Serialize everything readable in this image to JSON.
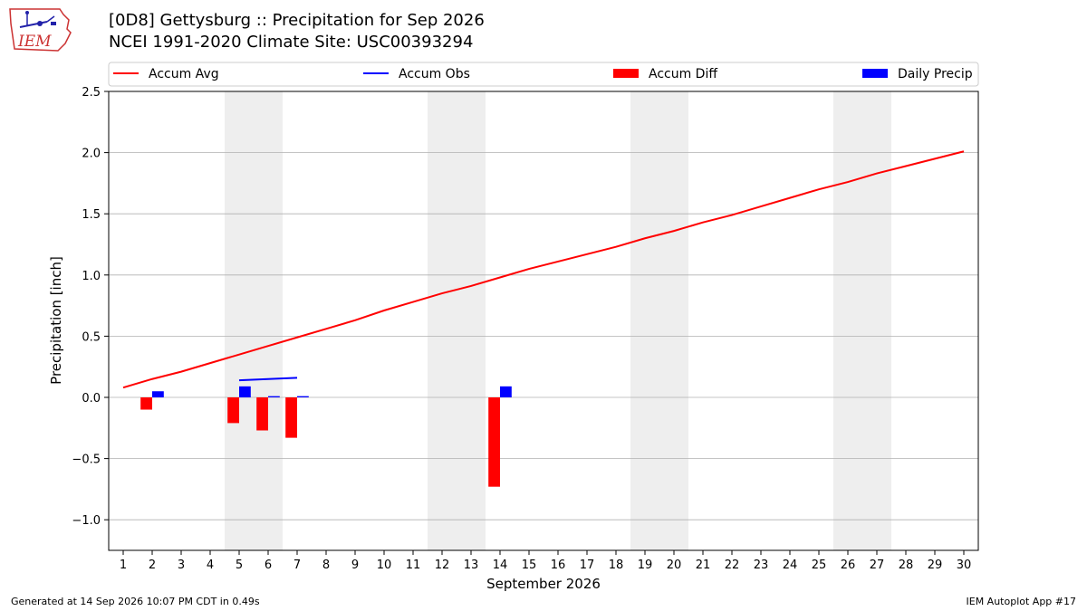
{
  "header": {
    "title": "[0D8] Gettysburg :: Precipitation for Sep 2026",
    "subtitle": "NCEI 1991-2020 Climate Site: USC00393294"
  },
  "logo": {
    "text": "IEM"
  },
  "footer": {
    "generated": "Generated at 14 Sep 2026 10:07 PM CDT in 0.49s",
    "app": "IEM Autoplot App #17"
  },
  "colors": {
    "accum_avg": "#ff0000",
    "accum_obs": "#0000ff",
    "accum_diff": "#ff0000",
    "daily_precip": "#0000ff",
    "weekend_shade": "#eeeeee",
    "grid": "#b0b0b0"
  },
  "chart_data": {
    "type": "bar",
    "title": "[0D8] Gettysburg :: Precipitation for Sep 2026",
    "xlabel": "September 2026",
    "ylabel": "Precipitation [inch]",
    "xlim": [
      0.5,
      30.5
    ],
    "ylim": [
      -1.25,
      2.5
    ],
    "yticks": [
      -1.0,
      -0.5,
      0.0,
      0.5,
      1.0,
      1.5,
      2.0,
      2.5
    ],
    "ytick_labels": [
      "−1.0",
      "−0.5",
      "0.0",
      "0.5",
      "1.0",
      "1.5",
      "2.0",
      "2.5"
    ],
    "xticks": [
      1,
      2,
      3,
      4,
      5,
      6,
      7,
      8,
      9,
      10,
      11,
      12,
      13,
      14,
      15,
      16,
      17,
      18,
      19,
      20,
      21,
      22,
      23,
      24,
      25,
      26,
      27,
      28,
      29,
      30
    ],
    "grid": "y",
    "legend_position": "top",
    "legend": [
      "Accum Avg",
      "Accum Obs",
      "Accum Diff",
      "Daily Precip"
    ],
    "shaded_days": [
      [
        5,
        6
      ],
      [
        12,
        13
      ],
      [
        19,
        20
      ],
      [
        26,
        27
      ]
    ],
    "series": [
      {
        "name": "Accum Avg",
        "type": "line",
        "x": [
          1,
          2,
          3,
          4,
          5,
          6,
          7,
          8,
          9,
          10,
          11,
          12,
          13,
          14,
          15,
          16,
          17,
          18,
          19,
          20,
          21,
          22,
          23,
          24,
          25,
          26,
          27,
          28,
          29,
          30
        ],
        "values": [
          0.08,
          0.15,
          0.21,
          0.28,
          0.35,
          0.42,
          0.49,
          0.56,
          0.63,
          0.71,
          0.78,
          0.85,
          0.91,
          0.98,
          1.05,
          1.11,
          1.17,
          1.23,
          1.3,
          1.36,
          1.43,
          1.49,
          1.56,
          1.63,
          1.7,
          1.76,
          1.83,
          1.89,
          1.95,
          2.01
        ]
      },
      {
        "name": "Accum Obs",
        "type": "line",
        "x": [
          5,
          6,
          7
        ],
        "values": [
          0.14,
          0.15,
          0.16
        ]
      },
      {
        "name": "Accum Diff",
        "type": "bar",
        "x": [
          2,
          5,
          6,
          7,
          14
        ],
        "values": [
          -0.1,
          -0.21,
          -0.27,
          -0.33,
          -0.73
        ]
      },
      {
        "name": "Daily Precip",
        "type": "bar",
        "x": [
          2,
          5,
          6,
          7,
          14
        ],
        "values": [
          0.05,
          0.09,
          0.01,
          0.01,
          0.09
        ]
      }
    ]
  }
}
